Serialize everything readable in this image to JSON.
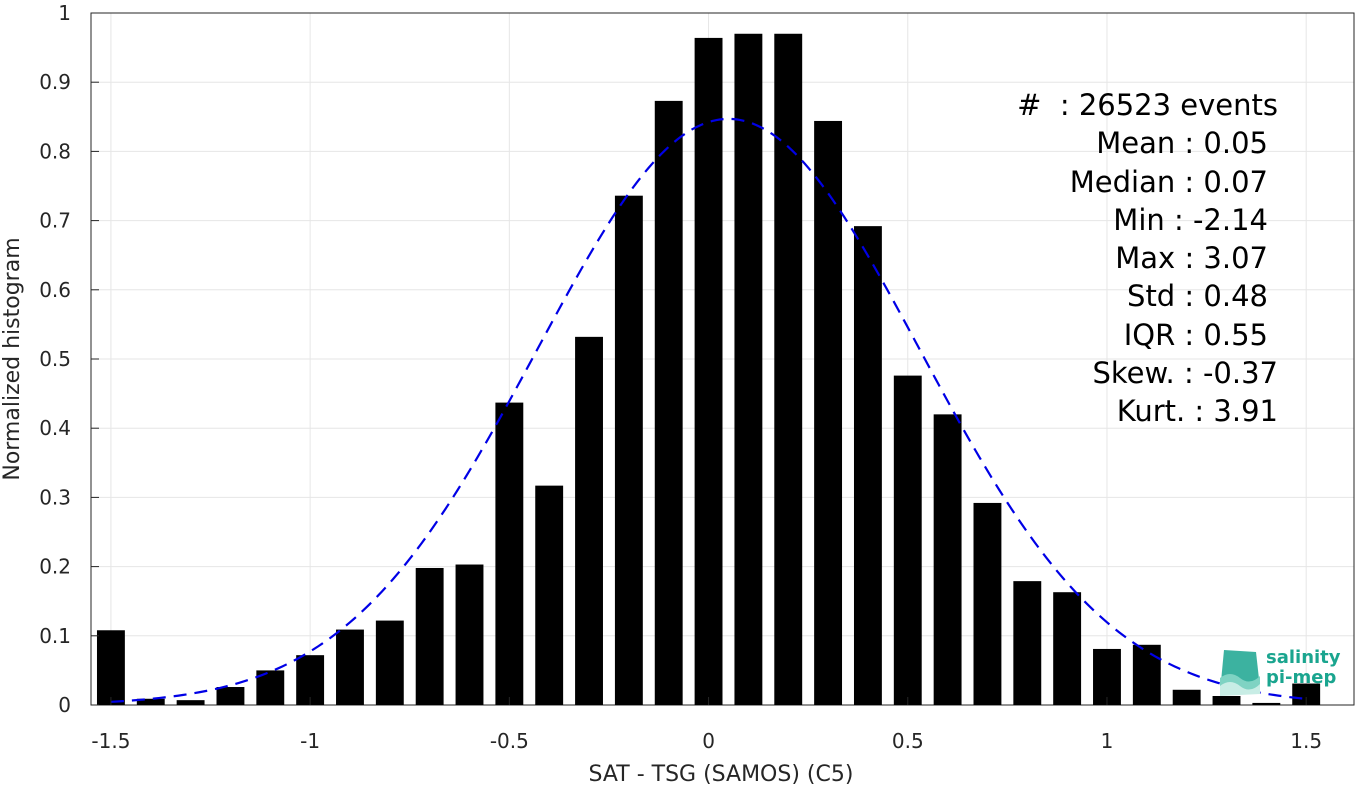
{
  "chart_data": {
    "type": "bar",
    "xlabel": "SAT - TSG (SAMOS) (C5)",
    "ylabel": "Normalized histogram",
    "xlim": [
      -1.55,
      1.62
    ],
    "ylim": [
      0,
      1
    ],
    "xticks": [
      -1.5,
      -1,
      -0.5,
      0,
      0.5,
      1,
      1.5
    ],
    "xtick_labels": [
      "-1.5",
      "-1",
      "-0.5",
      "0",
      "0.5",
      "1",
      "1.5"
    ],
    "yticks": [
      0,
      0.1,
      0.2,
      0.3,
      0.4,
      0.5,
      0.6,
      0.7,
      0.8,
      0.9,
      1
    ],
    "ytick_labels": [
      "0",
      "0.1",
      "0.2",
      "0.3",
      "0.4",
      "0.5",
      "0.6",
      "0.7",
      "0.8",
      "0.9",
      "1"
    ],
    "grid": true,
    "bin_width": 0.1,
    "bar_color": "#000000",
    "fit_color": "#0000e6",
    "bars": [
      {
        "x": -1.5,
        "y": 0.108
      },
      {
        "x": -1.4,
        "y": 0.009
      },
      {
        "x": -1.3,
        "y": 0.007
      },
      {
        "x": -1.2,
        "y": 0.026
      },
      {
        "x": -1.1,
        "y": 0.05
      },
      {
        "x": -1.0,
        "y": 0.072
      },
      {
        "x": -0.9,
        "y": 0.109
      },
      {
        "x": -0.8,
        "y": 0.122
      },
      {
        "x": -0.7,
        "y": 0.198
      },
      {
        "x": -0.6,
        "y": 0.203
      },
      {
        "x": -0.5,
        "y": 0.437
      },
      {
        "x": -0.4,
        "y": 0.317
      },
      {
        "x": -0.3,
        "y": 0.532
      },
      {
        "x": -0.2,
        "y": 0.736
      },
      {
        "x": -0.1,
        "y": 0.873
      },
      {
        "x": 0.0,
        "y": 0.964
      },
      {
        "x": 0.1,
        "y": 0.97
      },
      {
        "x": 0.2,
        "y": 0.97
      },
      {
        "x": 0.3,
        "y": 0.844
      },
      {
        "x": 0.4,
        "y": 0.692
      },
      {
        "x": 0.5,
        "y": 0.476
      },
      {
        "x": 0.6,
        "y": 0.42
      },
      {
        "x": 0.7,
        "y": 0.292
      },
      {
        "x": 0.8,
        "y": 0.179
      },
      {
        "x": 0.9,
        "y": 0.163
      },
      {
        "x": 1.0,
        "y": 0.081
      },
      {
        "x": 1.1,
        "y": 0.087
      },
      {
        "x": 1.2,
        "y": 0.022
      },
      {
        "x": 1.3,
        "y": 0.013
      },
      {
        "x": 1.4,
        "y": 0.003
      },
      {
        "x": 1.5,
        "y": 0.031
      }
    ],
    "fit": {
      "mean": 0.05,
      "std": 0.48,
      "peak": 0.847
    },
    "stats": [
      "#  : 26523 events",
      "Mean : 0.05",
      "Median : 0.07",
      "Min : -2.14",
      "Max : 3.07",
      "Std : 0.48",
      "IQR : 0.55",
      "Skew. : -0.37",
      "Kurt. : 3.91"
    ]
  },
  "logo": {
    "line1": "salinity",
    "line2": "pi-mep"
  }
}
